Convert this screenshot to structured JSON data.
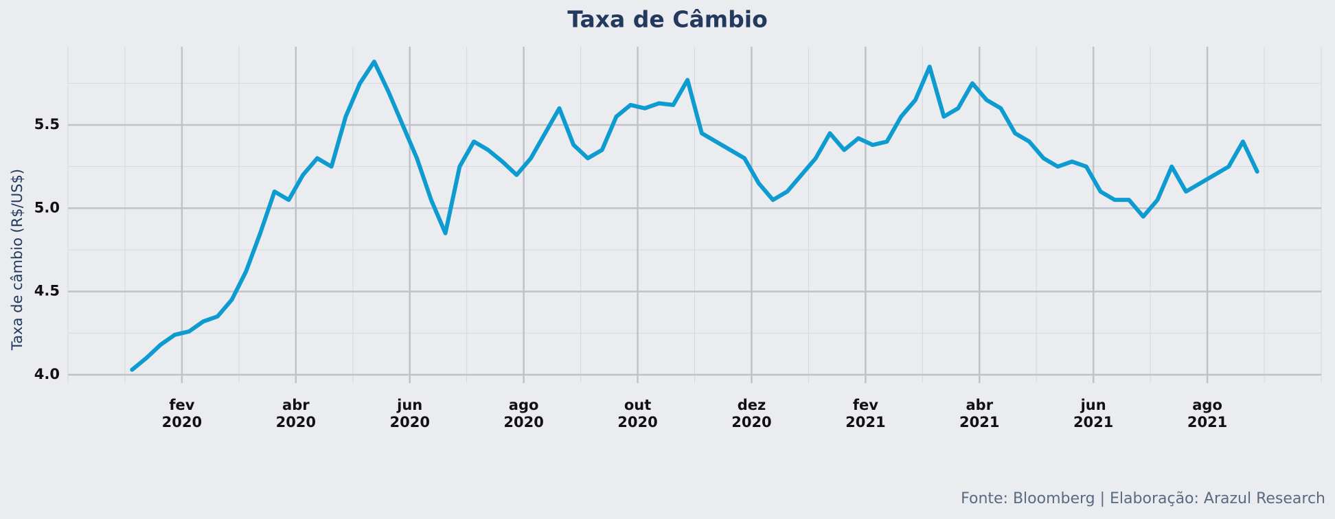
{
  "chart_data": {
    "type": "line",
    "title": "Taxa de Câmbio",
    "y_label": "Taxa de câmbio (R$/US$)",
    "source": "Fonte: Bloomberg | Elaboração: Arazul Research",
    "x": [
      "2020-01",
      "2020-01",
      "2020-01",
      "2020-01",
      "2020-02",
      "2020-02",
      "2020-02",
      "2020-02",
      "2020-03",
      "2020-03",
      "2020-03",
      "2020-03",
      "2020-04",
      "2020-04",
      "2020-04",
      "2020-04",
      "2020-05",
      "2020-05",
      "2020-05",
      "2020-05",
      "2020-06",
      "2020-06",
      "2020-06",
      "2020-06",
      "2020-07",
      "2020-07",
      "2020-07",
      "2020-07",
      "2020-08",
      "2020-08",
      "2020-08",
      "2020-08",
      "2020-09",
      "2020-09",
      "2020-09",
      "2020-09",
      "2020-10",
      "2020-10",
      "2020-10",
      "2020-10",
      "2020-11",
      "2020-11",
      "2020-11",
      "2020-11",
      "2020-12",
      "2020-12",
      "2020-12",
      "2020-12",
      "2021-01",
      "2021-01",
      "2021-01",
      "2021-01",
      "2021-02",
      "2021-02",
      "2021-02",
      "2021-02",
      "2021-03",
      "2021-03",
      "2021-03",
      "2021-03",
      "2021-04",
      "2021-04",
      "2021-04",
      "2021-04",
      "2021-05",
      "2021-05",
      "2021-05",
      "2021-05",
      "2021-06",
      "2021-06",
      "2021-06",
      "2021-06",
      "2021-07",
      "2021-07",
      "2021-07",
      "2021-07",
      "2021-08",
      "2021-08",
      "2021-08",
      "2021-08"
    ],
    "series": [
      {
        "name": "Taxa de câmbio",
        "color": "#0e9bd0",
        "values": [
          4.03,
          4.1,
          4.18,
          4.24,
          4.26,
          4.32,
          4.35,
          4.45,
          4.62,
          4.85,
          5.1,
          5.05,
          5.2,
          5.3,
          5.25,
          5.55,
          5.75,
          5.88,
          5.7,
          5.5,
          5.3,
          5.05,
          4.85,
          5.25,
          5.4,
          5.35,
          5.28,
          5.2,
          5.3,
          5.45,
          5.6,
          5.38,
          5.3,
          5.35,
          5.55,
          5.62,
          5.6,
          5.63,
          5.62,
          5.77,
          5.45,
          5.4,
          5.35,
          5.3,
          5.15,
          5.05,
          5.1,
          5.2,
          5.3,
          5.45,
          5.35,
          5.42,
          5.38,
          5.4,
          5.55,
          5.65,
          5.85,
          5.55,
          5.6,
          5.75,
          5.65,
          5.6,
          5.45,
          5.4,
          5.3,
          5.25,
          5.28,
          5.25,
          5.1,
          5.05,
          5.05,
          4.95,
          5.05,
          5.25,
          5.1,
          5.15,
          5.2,
          5.25,
          5.4,
          5.22
        ]
      }
    ],
    "xlim": [
      "2019-12",
      "2021-10"
    ],
    "xticks": [
      {
        "value": "2020-02",
        "label": "fev\n2020"
      },
      {
        "value": "2020-04",
        "label": "abr\n2020"
      },
      {
        "value": "2020-06",
        "label": "jun\n2020"
      },
      {
        "value": "2020-08",
        "label": "ago\n2020"
      },
      {
        "value": "2020-10",
        "label": "out\n2020"
      },
      {
        "value": "2020-12",
        "label": "dez\n2020"
      },
      {
        "value": "2021-02",
        "label": "fev\n2021"
      },
      {
        "value": "2021-04",
        "label": "abr\n2021"
      },
      {
        "value": "2021-06",
        "label": "jun\n2021"
      },
      {
        "value": "2021-08",
        "label": "ago\n2021"
      }
    ],
    "ylim": [
      3.95,
      5.97
    ],
    "yticks": [
      {
        "value": 4,
        "label": "4.0"
      },
      4.5,
      {
        "value": 5,
        "label": "5.0"
      },
      5.5
    ],
    "grid": true
  }
}
